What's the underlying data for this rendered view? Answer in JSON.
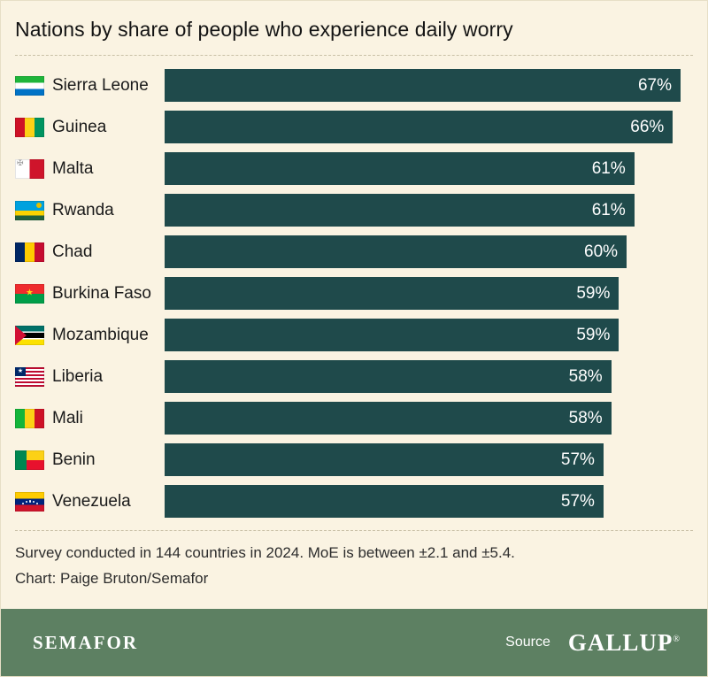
{
  "title": "Nations by share of people who experience daily worry",
  "chart_data": {
    "type": "bar",
    "orientation": "horizontal",
    "categories": [
      "Sierra Leone",
      "Guinea",
      "Malta",
      "Rwanda",
      "Chad",
      "Burkina Faso",
      "Mozambique",
      "Liberia",
      "Mali",
      "Benin",
      "Venezuela"
    ],
    "values": [
      67,
      66,
      61,
      61,
      60,
      59,
      59,
      58,
      58,
      57,
      57
    ],
    "value_labels": [
      "67%",
      "66%",
      "61%",
      "61%",
      "60%",
      "59%",
      "59%",
      "58%",
      "58%",
      "57%",
      "57%"
    ],
    "flags": [
      "sierra-leone",
      "guinea",
      "malta",
      "rwanda",
      "chad",
      "burkina-faso",
      "mozambique",
      "liberia",
      "mali",
      "benin",
      "venezuela"
    ],
    "xlim": [
      0,
      67
    ],
    "grid": false,
    "legend": "none",
    "bar_color": "#1f4a4b",
    "value_label_color": "#ffffff"
  },
  "footer": {
    "note": "Survey conducted in 144 countries in 2024. MoE is between ±2.1 and ±5.4.",
    "credit": "Chart: Paige Bruton/Semafor"
  },
  "brandbar": {
    "brand": "SEMAFOR",
    "source_label": "Source",
    "source_name": "GALLUP",
    "trademark": "®"
  },
  "colors": {
    "background": "#faf3e2",
    "bar": "#1f4a4b",
    "brandbar": "#5d8062",
    "divider": "#c9c0a6",
    "title_text": "#141414"
  }
}
